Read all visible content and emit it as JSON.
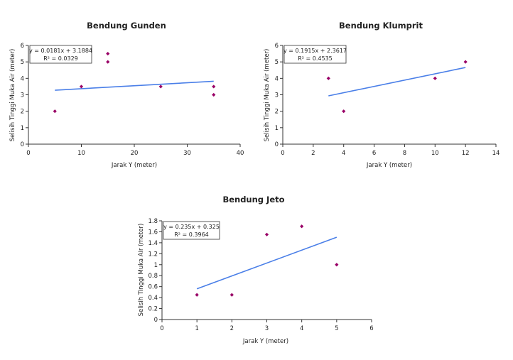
{
  "chart_data": [
    {
      "type": "scatter",
      "title": "Bendung Gunden",
      "xlabel": "Jarak Y (meter)",
      "ylabel": "Selisih Tinggi Muka Air (meter)",
      "xlim": [
        0,
        40
      ],
      "ylim": [
        0,
        6
      ],
      "xticks": [
        0,
        10,
        20,
        30,
        40
      ],
      "yticks": [
        0,
        1,
        2,
        3,
        4,
        5,
        6
      ],
      "points": [
        {
          "x": 5,
          "y": 2
        },
        {
          "x": 10,
          "y": 3.5
        },
        {
          "x": 15,
          "y": 5.5
        },
        {
          "x": 15,
          "y": 5
        },
        {
          "x": 25,
          "y": 3.5
        },
        {
          "x": 35,
          "y": 3.5
        },
        {
          "x": 35,
          "y": 3
        }
      ],
      "trendline": {
        "slope": 0.0181,
        "intercept": 3.1884,
        "x_range": [
          5,
          35
        ]
      },
      "equation_text": "y = 0.0181x + 3.1884",
      "r2_text": "R² = 0.0329",
      "point_color": "#990066",
      "line_color": "#4a7fe8",
      "grid": false
    },
    {
      "type": "scatter",
      "title": "Bendung Klumprit",
      "xlabel": "Jarak Y (meter)",
      "ylabel": "Selisih Tinggi Muka Air (meter)",
      "xlim": [
        0,
        14
      ],
      "ylim": [
        0,
        6
      ],
      "xticks": [
        0,
        2,
        4,
        6,
        8,
        10,
        12,
        14
      ],
      "yticks": [
        0,
        1,
        2,
        3,
        4,
        5,
        6
      ],
      "points": [
        {
          "x": 3,
          "y": 4
        },
        {
          "x": 4,
          "y": 2
        },
        {
          "x": 10,
          "y": 4
        },
        {
          "x": 12,
          "y": 5
        }
      ],
      "trendline": {
        "slope": 0.1915,
        "intercept": 2.3617,
        "x_range": [
          3,
          12
        ]
      },
      "equation_text": "y = 0.1915x + 2.3617",
      "r2_text": "R² = 0.4535",
      "point_color": "#990066",
      "line_color": "#4a7fe8",
      "grid": false
    },
    {
      "type": "scatter",
      "title": "Bendung Jeto",
      "xlabel": "Jarak Y (meter)",
      "ylabel": "Selisih Tinggi Muka Air (meter)",
      "xlim": [
        0,
        6
      ],
      "ylim": [
        0,
        1.8
      ],
      "xticks": [
        0,
        1,
        2,
        3,
        4,
        5,
        6
      ],
      "yticks": [
        0,
        0.2,
        0.4,
        0.6,
        0.8,
        1,
        1.2,
        1.4,
        1.6,
        1.8
      ],
      "points": [
        {
          "x": 1,
          "y": 0.45
        },
        {
          "x": 2,
          "y": 0.45
        },
        {
          "x": 3,
          "y": 1.55
        },
        {
          "x": 4,
          "y": 1.7
        },
        {
          "x": 5,
          "y": 1
        }
      ],
      "trendline": {
        "slope": 0.235,
        "intercept": 0.325,
        "x_range": [
          1,
          5
        ]
      },
      "equation_text": "y = 0.235x + 0.325",
      "r2_text": "R² = 0.3964",
      "point_color": "#990066",
      "line_color": "#4a7fe8",
      "grid": false
    }
  ]
}
